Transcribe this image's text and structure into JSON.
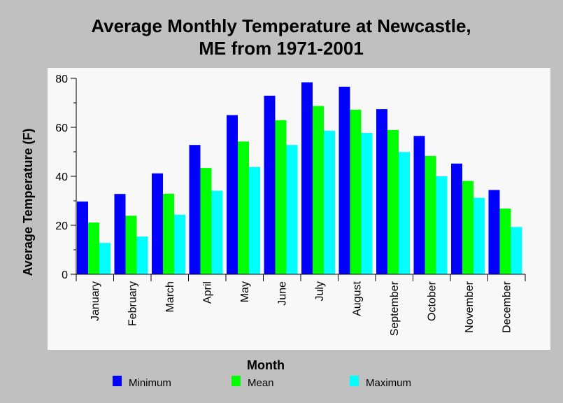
{
  "colors": {
    "background": "#c0c0c0",
    "plot_background": "#f8f8f8",
    "Minimum": "#0000ff",
    "Mean": "#00ff00",
    "Maximum": "#00ffff"
  },
  "chart_data": {
    "type": "bar",
    "title": [
      "Average Monthly Temperature at Newcastle,",
      "ME from 1971-2001"
    ],
    "xlabel": "Month",
    "ylabel": "Average Temperature (F)",
    "ylim": [
      0,
      80
    ],
    "yticks": [
      0,
      20,
      40,
      60,
      80
    ],
    "grid": false,
    "legend_position": "bottom",
    "categories": [
      "January",
      "February",
      "March",
      "April",
      "May",
      "June",
      "July",
      "August",
      "September",
      "October",
      "November",
      "December"
    ],
    "series": [
      {
        "name": "Minimum",
        "values": [
          29.7,
          32.8,
          41.2,
          52.8,
          65.0,
          72.9,
          78.4,
          76.6,
          67.4,
          56.5,
          45.2,
          34.4
        ]
      },
      {
        "name": "Mean",
        "values": [
          21.1,
          23.9,
          32.9,
          43.4,
          54.2,
          62.9,
          68.7,
          67.2,
          58.9,
          48.3,
          38.1,
          26.8
        ]
      },
      {
        "name": "Maximum",
        "values": [
          12.8,
          15.4,
          24.3,
          34.1,
          43.8,
          52.8,
          58.6,
          57.7,
          49.9,
          40.0,
          31.2,
          19.3
        ]
      }
    ]
  }
}
